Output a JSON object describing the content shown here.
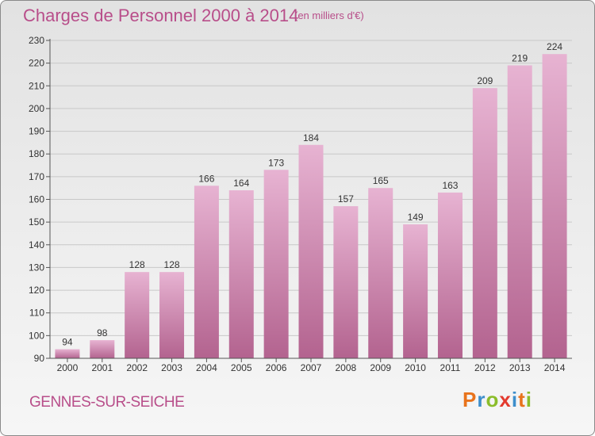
{
  "header": {
    "title": "Charges de Personnel 2000 à 2014",
    "subtitle": "(en milliers d'€)"
  },
  "footer": {
    "commune": "GENNES-SUR-SEICHE",
    "logo_text": "Proxiti",
    "logo_colors": [
      "#e8731c",
      "#3d8ecb",
      "#8bbd2b",
      "#e33a2e",
      "#3d8ecb",
      "#e8731c",
      "#8bbd2b"
    ]
  },
  "colors": {
    "bar_light": "#e7b3d2",
    "bar_dark": "#b3638f",
    "text_accent": "#b84e8a",
    "grid": "#c8c8c8"
  },
  "chart_data": {
    "type": "bar",
    "categories": [
      "2000",
      "2001",
      "2002",
      "2003",
      "2004",
      "2005",
      "2006",
      "2007",
      "2008",
      "2009",
      "2010",
      "2011",
      "2012",
      "2013",
      "2014"
    ],
    "values": [
      94,
      98,
      128,
      128,
      166,
      164,
      173,
      184,
      157,
      165,
      149,
      163,
      209,
      219,
      224
    ],
    "yticks": [
      90,
      100,
      110,
      120,
      130,
      140,
      150,
      160,
      170,
      180,
      190,
      200,
      210,
      220,
      230
    ],
    "ylim": [
      90,
      230
    ],
    "grid": true,
    "legend": "none"
  }
}
